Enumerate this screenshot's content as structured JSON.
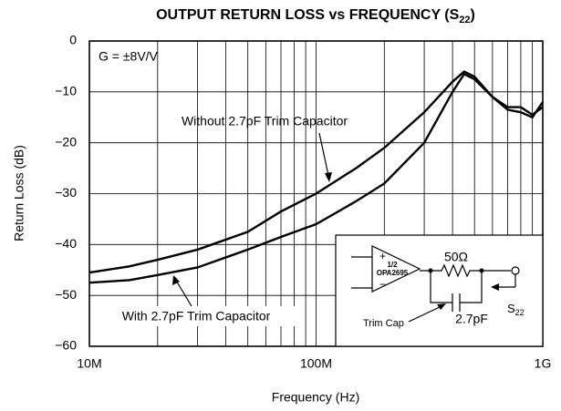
{
  "chart_data": {
    "type": "line",
    "title": {
      "text": "OUTPUT RETURN LOSS vs FREQUENCY (S",
      "subscript": "22",
      "suffix": ")"
    },
    "x_label": "Frequency (Hz)",
    "y_label": "Return Loss (dB)",
    "x": [
      10000000,
      15000000,
      20000000,
      30000000,
      50000000,
      70000000,
      100000000,
      150000000,
      200000000,
      300000000,
      400000000,
      450000000,
      500000000,
      600000000,
      700000000,
      800000000,
      900000000,
      1000000000
    ],
    "series": [
      {
        "name": "Without 2.7pF Trim Capacitor",
        "color": "#000000",
        "values": [
          -45.5,
          -44.3,
          -43,
          -41,
          -37.5,
          -33.5,
          -30,
          -25,
          -21,
          -14,
          -8,
          -6,
          -7,
          -11,
          -13.5,
          -14,
          -15,
          -12
        ]
      },
      {
        "name": "With 2.7pF Trim Capacitor",
        "color": "#000000",
        "values": [
          -47.5,
          -47,
          -46,
          -44.5,
          -41,
          -38.5,
          -36,
          -31.5,
          -28,
          -20,
          -10,
          -6.5,
          -7.5,
          -11,
          -13,
          -13,
          -14.5,
          -13
        ]
      }
    ],
    "xlim": [
      10000000,
      1000000000
    ],
    "xlog": true,
    "xticks": [
      {
        "value": 10000000,
        "label": "10M"
      },
      {
        "value": 100000000,
        "label": "100M"
      },
      {
        "value": 1000000000,
        "label": "1G"
      }
    ],
    "xticks_minor": [
      20000000,
      30000000,
      40000000,
      50000000,
      60000000,
      70000000,
      80000000,
      90000000,
      200000000,
      300000000,
      400000000,
      500000000,
      600000000,
      700000000,
      800000000,
      900000000
    ],
    "ylim": [
      -60,
      0
    ],
    "yticks": [
      0,
      {
        "value": -10,
        "label": "−10"
      },
      {
        "value": -20,
        "label": "−20"
      },
      {
        "value": -30,
        "label": "−30"
      },
      {
        "value": -40,
        "label": "−40"
      },
      {
        "value": -50,
        "label": "−50"
      },
      {
        "value": -60,
        "label": "−60"
      }
    ],
    "grid": true,
    "annotations": {
      "gain": "G = ±8V/V"
    },
    "inset": {
      "half": "1/2",
      "part": "OPA2695",
      "plus": "+",
      "minus": "−",
      "resistor": "50Ω",
      "port": "S",
      "port_sub": "22",
      "trim_label": "Trim Cap",
      "cap": "2.7pF"
    }
  }
}
